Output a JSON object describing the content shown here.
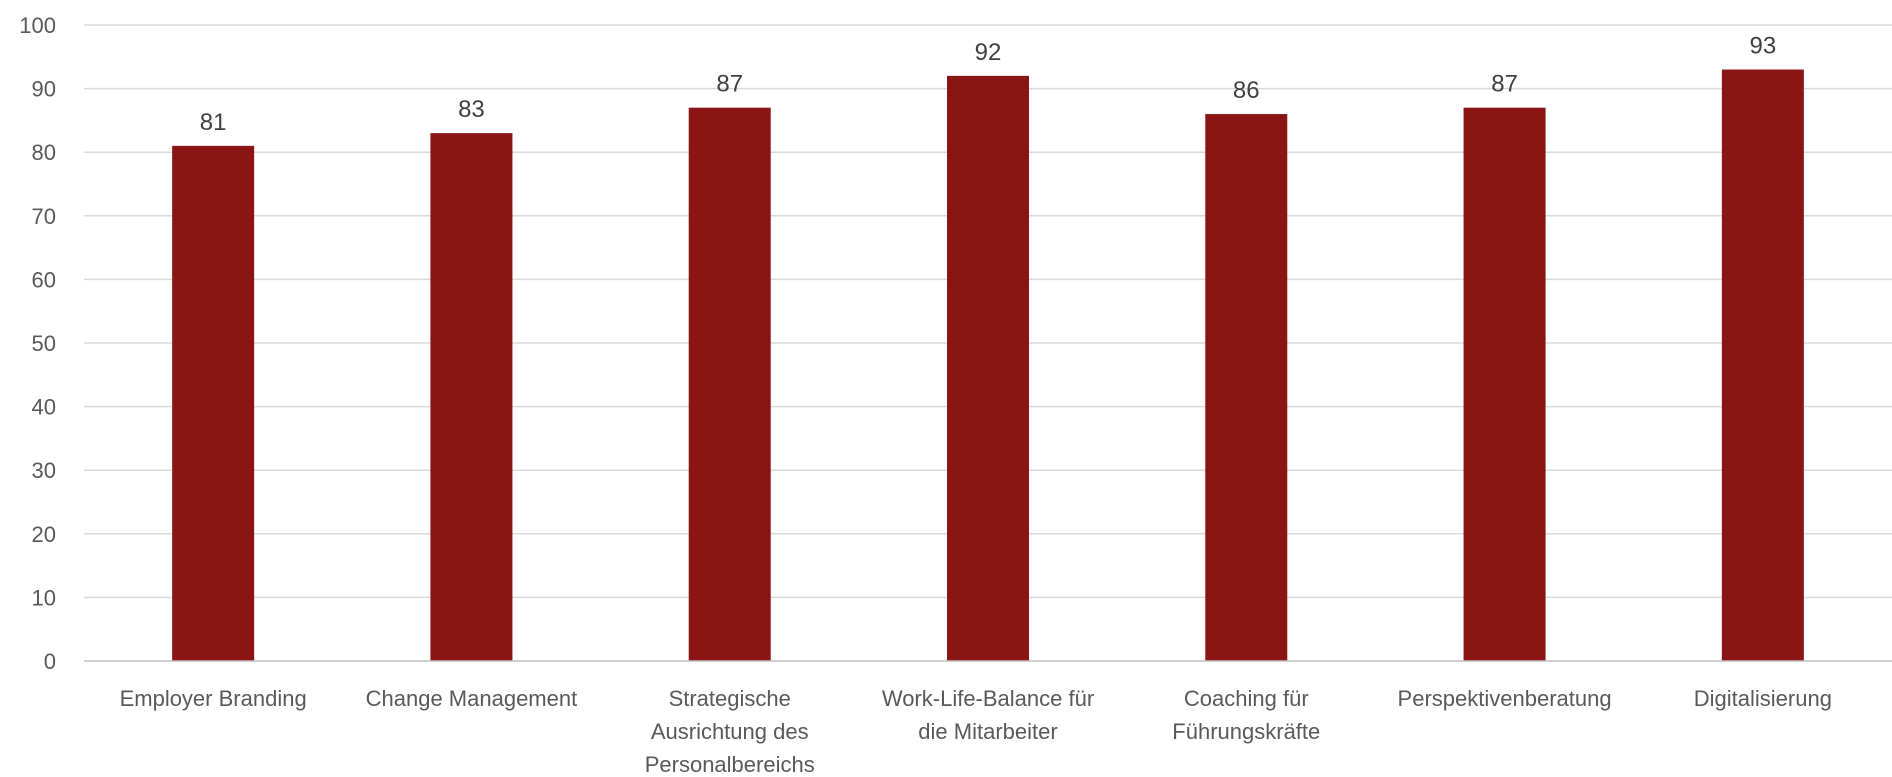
{
  "chart_data": {
    "type": "bar",
    "title": "",
    "xlabel": "",
    "ylabel": "",
    "categories": [
      "Employer Branding",
      "Change Management",
      "Strategische Ausrichtung des Personalbereichs",
      "Work-Life-Balance für die Mitarbeiter",
      "Coaching für Führungskräfte",
      "Perspektivenberatung",
      "Digitalisierung"
    ],
    "category_lines": [
      [
        "Employer Branding"
      ],
      [
        "Change Management"
      ],
      [
        "Strategische",
        "Ausrichtung des",
        "Personalbereichs"
      ],
      [
        "Work-Life-Balance für",
        "die Mitarbeiter"
      ],
      [
        "Coaching für",
        "Führungskräfte"
      ],
      [
        "Perspektivenberatung"
      ],
      [
        "Digitalisierung"
      ]
    ],
    "values": [
      81,
      83,
      87,
      92,
      86,
      87,
      93
    ],
    "ylim": [
      0,
      100
    ],
    "yticks": [
      0,
      10,
      20,
      30,
      40,
      50,
      60,
      70,
      80,
      90,
      100
    ],
    "grid": true,
    "legend": "none",
    "bar_color": "#8B1414",
    "data_labels": true
  }
}
